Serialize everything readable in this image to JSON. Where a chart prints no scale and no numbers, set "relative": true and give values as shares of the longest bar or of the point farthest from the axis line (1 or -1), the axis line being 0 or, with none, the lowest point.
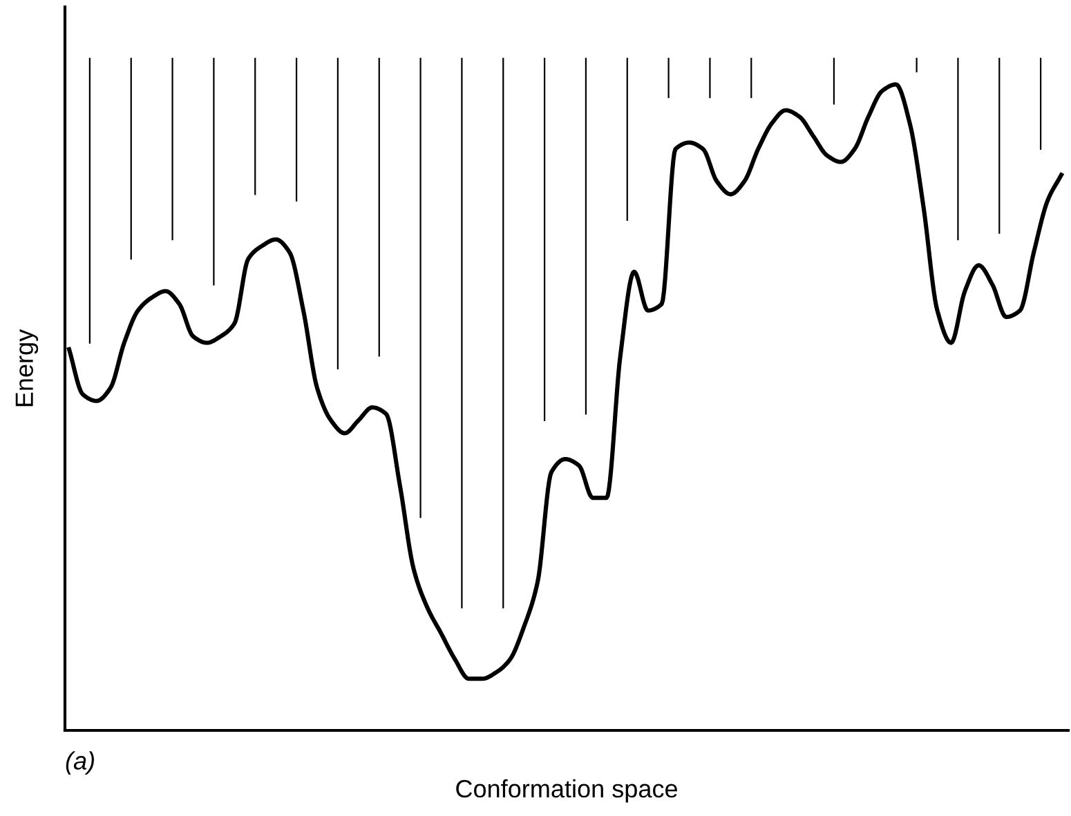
{
  "chart_data": {
    "type": "line",
    "relative": true,
    "xlabel": "Conformation space",
    "ylabel": "Energy",
    "annotations": [
      "(a)"
    ],
    "color": "#000000",
    "marker": "none",
    "line_style": "solid",
    "grid": false,
    "legend": false,
    "categories": [
      null,
      null,
      null,
      null,
      null,
      null,
      null,
      null,
      null,
      null,
      null,
      null,
      null,
      null,
      null,
      null,
      null,
      null,
      null,
      null,
      null,
      null,
      null,
      null,
      null,
      null,
      null,
      null,
      null,
      null,
      null,
      null,
      null,
      null,
      null,
      null,
      null,
      null,
      null,
      null,
      null,
      null,
      null,
      null,
      null,
      null,
      null,
      null,
      null,
      null,
      null,
      null,
      null,
      null,
      null,
      null,
      null,
      null,
      null,
      null,
      null,
      null,
      null,
      null,
      null,
      null,
      null,
      null,
      null,
      null,
      null,
      null,
      null
    ],
    "values": [
      0.59,
      0.52,
      0.51,
      0.53,
      0.6,
      0.65,
      0.67,
      0.68,
      0.66,
      0.61,
      0.6,
      0.61,
      0.63,
      0.73,
      0.75,
      0.76,
      0.74,
      0.65,
      0.53,
      0.48,
      0.46,
      0.48,
      0.5,
      0.49,
      0.38,
      0.25,
      0.19,
      0.15,
      0.11,
      0.08,
      0.08,
      0.09,
      0.11,
      0.16,
      0.23,
      0.4,
      0.42,
      0.41,
      0.36,
      0.36,
      0.58,
      0.71,
      0.65,
      0.66,
      0.9,
      0.91,
      0.9,
      0.85,
      0.83,
      0.85,
      0.9,
      0.94,
      0.96,
      0.95,
      0.92,
      0.89,
      0.88,
      0.9,
      0.95,
      0.99,
      1.0,
      0.94,
      0.81,
      0.65,
      0.6,
      0.68,
      0.72,
      0.69,
      0.64,
      0.65,
      0.74,
      0.82,
      0.86
    ]
  }
}
